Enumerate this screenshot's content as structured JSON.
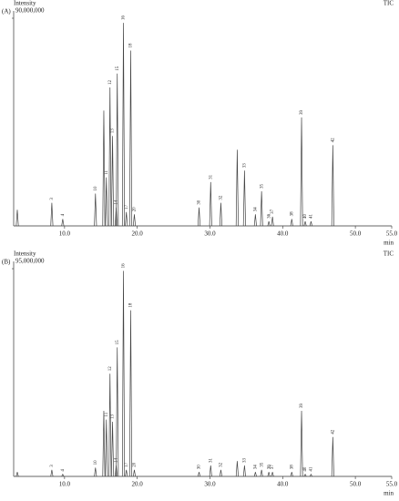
{
  "chart_data": [
    {
      "type": "peaks",
      "title": "(A)",
      "y_label": "Intensity",
      "trace_label": "TIC",
      "x_label": "min",
      "color": "#444444",
      "x": [
        3.5,
        8.25,
        9.75,
        14.25,
        15.4,
        15.75,
        16.25,
        16.6,
        17.1,
        17.25,
        18.1,
        18.5,
        19.1,
        19.6,
        28.5,
        30.1,
        31.5,
        33.75,
        34.75,
        36.25,
        37.1,
        38.1,
        38.6,
        41.25,
        42.6,
        43.1,
        43.9,
        46.9
      ],
      "values": [
        7000000,
        10000000,
        3000000,
        14000000,
        50000000,
        21000000,
        60000000,
        39000000,
        8000000,
        66000000,
        88000000,
        6000000,
        76000000,
        5000000,
        8000000,
        19000000,
        10000000,
        33000000,
        24000000,
        5000000,
        15000000,
        2000000,
        4000000,
        3000000,
        47000000,
        2000000,
        2000000,
        35000000
      ],
      "peak_labels": [
        null,
        "3",
        "4",
        "10",
        null,
        "11",
        "12",
        "13",
        "14",
        "15",
        "16",
        "17",
        "18",
        "20",
        "30",
        "31",
        "32",
        null,
        "33",
        "34",
        "35",
        "36",
        "37",
        "38",
        "39",
        "40",
        "41",
        "42"
      ],
      "xlim": [
        3,
        55
      ],
      "xticks": [
        {
          "value": 10,
          "label": "10.0"
        },
        {
          "value": 20,
          "label": "20.0"
        },
        {
          "value": 30,
          "label": "30.0"
        },
        {
          "value": 40,
          "label": "40.0"
        },
        {
          "value": 50,
          "label": "50.0"
        },
        {
          "value": 55,
          "label": "55.0"
        }
      ],
      "ylim": [
        0,
        90000000
      ],
      "yticks": [
        {
          "value": 90000000,
          "label": "90,000,000"
        }
      ]
    },
    {
      "type": "peaks",
      "title": "(B)",
      "y_label": "Intensity",
      "trace_label": "TIC",
      "x_label": "min",
      "color": "#444444",
      "x": [
        3.5,
        8.25,
        9.75,
        14.25,
        15.4,
        15.75,
        16.25,
        16.6,
        17.1,
        17.25,
        18.1,
        18.5,
        19.1,
        19.6,
        28.5,
        30.1,
        31.5,
        33.75,
        34.75,
        36.25,
        37.1,
        38.1,
        38.6,
        41.25,
        42.6,
        43.1,
        43.9,
        46.9
      ],
      "values": [
        2000000,
        3000000,
        1000000,
        4000000,
        30000000,
        26000000,
        47000000,
        25000000,
        5000000,
        59000000,
        94000000,
        3000000,
        76000000,
        3000000,
        2000000,
        5000000,
        3000000,
        7000000,
        5000000,
        2000000,
        3000000,
        2000000,
        2000000,
        2000000,
        30000000,
        1000000,
        1000000,
        18000000
      ],
      "peak_labels": [
        null,
        "3",
        "4",
        "10",
        null,
        "11",
        "12",
        "13",
        "14",
        "15",
        "16",
        "17",
        "18",
        "20",
        "30",
        "31",
        "32",
        null,
        "33",
        "34",
        "35",
        "36",
        "37",
        "38",
        "39",
        "40",
        "41",
        "42"
      ],
      "xlim": [
        3,
        55
      ],
      "xticks": [
        {
          "value": 10,
          "label": "10.0"
        },
        {
          "value": 20,
          "label": "20.0"
        },
        {
          "value": 30,
          "label": "30.0"
        },
        {
          "value": 40,
          "label": "40.0"
        },
        {
          "value": 50,
          "label": "50.0"
        },
        {
          "value": 55,
          "label": "55.0"
        }
      ],
      "ylim": [
        0,
        95000000
      ],
      "yticks": [
        {
          "value": 95000000,
          "label": "95,000,000"
        }
      ]
    }
  ]
}
